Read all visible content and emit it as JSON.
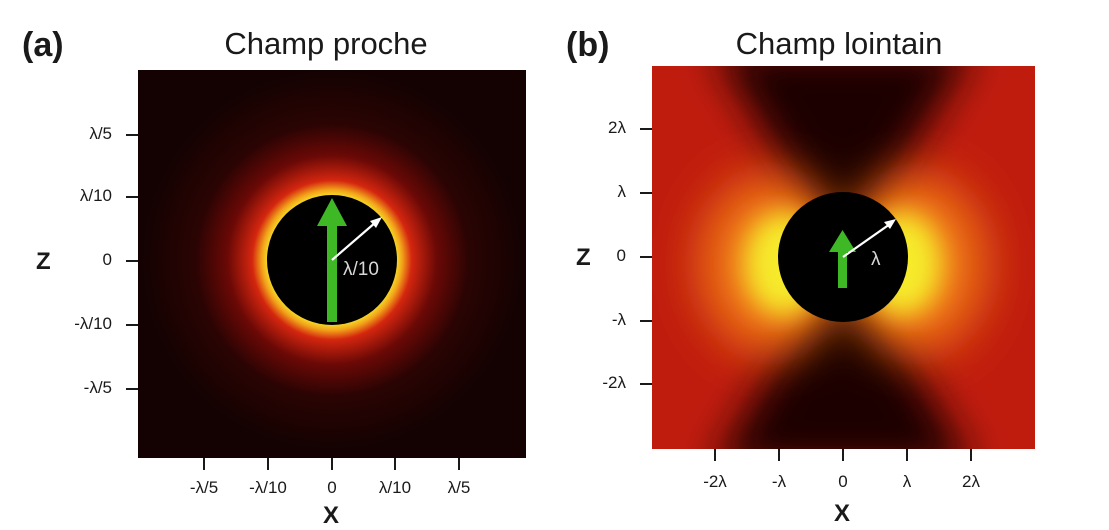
{
  "panels": [
    {
      "label": "(a)",
      "title": "Champ proche",
      "x_axis_label": "X",
      "z_axis_label": "Z",
      "x_ticks": [
        "-λ/5",
        "-λ/10",
        "0",
        "λ/10",
        "λ/5"
      ],
      "z_ticks": [
        "λ/5",
        "λ/10",
        "0",
        "-λ/10",
        "-λ/5"
      ],
      "sphere_label": "λ/10"
    },
    {
      "label": "(b)",
      "title": "Champ lointain",
      "x_axis_label": "X",
      "z_axis_label": "Z",
      "x_ticks": [
        "-2λ",
        "-λ",
        "0",
        "λ",
        "2λ"
      ],
      "z_ticks": [
        "2λ",
        "λ",
        "0",
        "-λ",
        "-2λ"
      ],
      "sphere_label": "λ"
    }
  ],
  "colors": {
    "field_background": "#140202",
    "field_red": "#c81e10",
    "field_yellow": "#f4ec28",
    "sphere": "#000000",
    "dipole_arrow": "#3fb826",
    "radius_arrow": "#ffffff"
  }
}
